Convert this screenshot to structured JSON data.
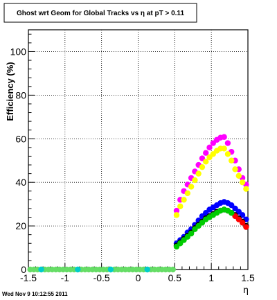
{
  "chart_data": {
    "type": "scatter",
    "title": "Ghost wrt Geom for Global Tracks vs    η at pT > 0.11",
    "xlabel": "η",
    "ylabel": "Efficiency (%)",
    "xlim": [
      -1.5,
      1.5
    ],
    "ylim": [
      0,
      110
    ],
    "x_ticks": [
      -1.5,
      -1,
      -0.5,
      0,
      0.5,
      1,
      1.5
    ],
    "x_tick_labels": [
      "-1.5",
      "-1",
      "-0.5",
      "0",
      "0.5",
      "1",
      "1.5"
    ],
    "y_ticks": [
      0,
      20,
      40,
      60,
      80,
      100
    ],
    "y_tick_labels": [
      "0",
      "20",
      "40",
      "60",
      "80",
      "100"
    ],
    "grid": true,
    "legend": "none",
    "timestamp": "Wed Nov  9 10:12:55 2011",
    "series": [
      {
        "color": "#ff00ff",
        "x": [
          0.525,
          0.575,
          0.625,
          0.675,
          0.725,
          0.775,
          0.825,
          0.875,
          0.925,
          0.975,
          1.025,
          1.075,
          1.125,
          1.175,
          1.225,
          1.275,
          1.325,
          1.375,
          1.425,
          1.475
        ],
        "y": [
          27,
          32,
          36,
          39,
          42,
          45,
          48,
          51,
          53.5,
          56,
          58,
          59.5,
          60.5,
          60.8,
          58,
          54,
          50,
          46,
          42,
          39
        ]
      },
      {
        "color": "#ffff00",
        "x": [
          0.525,
          0.575,
          0.625,
          0.675,
          0.725,
          0.775,
          0.825,
          0.875,
          0.925,
          0.975,
          1.025,
          1.075,
          1.125,
          1.175,
          1.225,
          1.275,
          1.325,
          1.375,
          1.425,
          1.475
        ],
        "y": [
          25,
          29,
          32,
          35,
          38,
          41,
          44,
          47,
          49.5,
          51.5,
          53,
          54.5,
          55.5,
          55.5,
          53,
          50,
          46,
          43,
          40,
          37
        ]
      },
      {
        "color": "#0000ff",
        "x": [
          0.525,
          0.575,
          0.625,
          0.675,
          0.725,
          0.775,
          0.825,
          0.875,
          0.925,
          0.975,
          1.025,
          1.075,
          1.125,
          1.175,
          1.225,
          1.275,
          1.325,
          1.375,
          1.425,
          1.475
        ],
        "y": [
          12,
          13.5,
          15,
          17,
          18.5,
          20.5,
          22.5,
          24.5,
          26,
          27.5,
          28.5,
          29.5,
          30.5,
          31,
          30.5,
          29.5,
          28,
          26.5,
          25,
          23
        ]
      },
      {
        "color": "#000000",
        "x": [
          0.525,
          0.575,
          0.625,
          0.675,
          0.725,
          0.775,
          0.825,
          0.875,
          0.925,
          0.975,
          1.025,
          1.075,
          1.125,
          1.175,
          1.225,
          1.275,
          1.325,
          1.375,
          1.425,
          1.475
        ],
        "y": [
          11,
          12.5,
          14,
          15.5,
          17,
          19,
          20.5,
          22,
          23.5,
          24.5,
          25.5,
          26.5,
          27,
          27.5,
          27,
          26,
          25,
          23.5,
          22,
          20
        ]
      },
      {
        "color": "#ff0000",
        "x": [
          1.325,
          1.375,
          1.425,
          1.475
        ],
        "y": [
          24.5,
          23,
          21.5,
          19.5
        ]
      },
      {
        "color": "#00cc00",
        "x": [
          0.525,
          0.575,
          0.625,
          0.675,
          0.725,
          0.775,
          0.825,
          0.875,
          0.925,
          0.975,
          1.025,
          1.075,
          1.125,
          1.175,
          1.225,
          1.275
        ],
        "y": [
          10.5,
          12,
          13.5,
          15,
          16.5,
          18.5,
          20,
          21.5,
          23,
          24,
          25,
          26,
          27,
          27.5,
          27,
          26
        ]
      },
      {
        "color": "#66dd66",
        "x": [
          -1.475,
          -1.425,
          -1.375,
          -1.325,
          -1.275,
          -1.225,
          -1.175,
          -1.125,
          -1.075,
          -1.025,
          -0.975,
          -0.925,
          -0.875,
          -0.825,
          -0.775,
          -0.725,
          -0.675,
          -0.625,
          -0.575,
          -0.525,
          -0.475,
          -0.425,
          -0.375,
          -0.325,
          -0.275,
          -0.225,
          -0.175,
          -0.125,
          -0.075,
          -0.025,
          0.025,
          0.075,
          0.125,
          0.175,
          0.225,
          0.275,
          0.325,
          0.375,
          0.425,
          0.475
        ],
        "y": [
          0,
          0,
          0,
          0,
          0,
          0,
          0,
          0,
          0,
          0,
          0,
          0,
          0,
          0,
          0,
          0,
          0,
          0,
          0,
          0,
          0,
          0,
          0,
          0,
          0,
          0,
          0,
          0,
          0,
          0,
          0,
          0,
          0,
          0,
          0,
          0,
          0,
          0,
          0,
          0
        ]
      },
      {
        "color": "#00cccc",
        "x": [
          -1.325,
          -0.825,
          -0.375,
          0.125
        ],
        "y": [
          0,
          0,
          0,
          0
        ]
      }
    ]
  }
}
